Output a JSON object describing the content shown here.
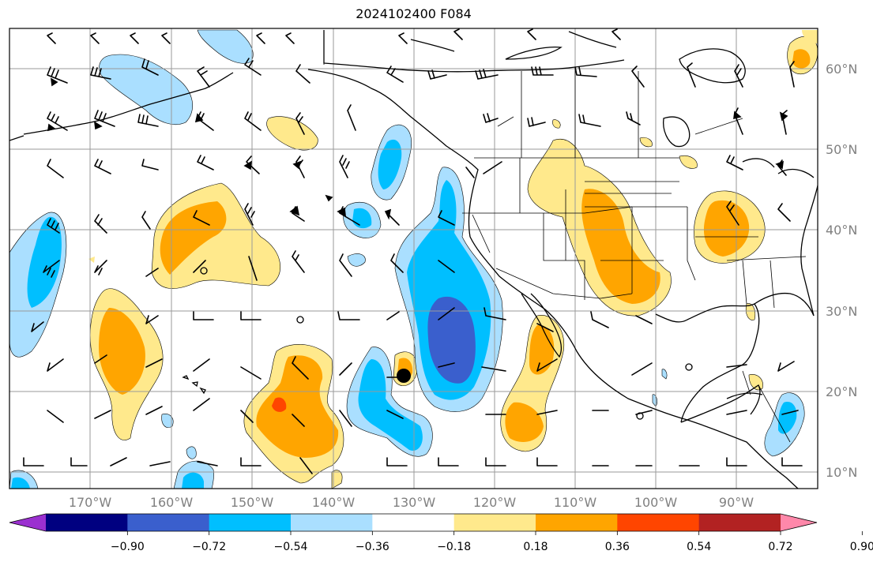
{
  "title": "2024102400 F084",
  "latitude_labels": [
    "60°N",
    "50°N",
    "40°N",
    "30°N",
    "20°N",
    "10°N"
  ],
  "longitude_labels": [
    "170°W",
    "160°W",
    "150°W",
    "140°W",
    "130°W",
    "120°W",
    "110°W",
    "100°W",
    "90°W"
  ],
  "colorbar": {
    "tick_labels": [
      "−0.90",
      "−0.72",
      "−0.54",
      "−0.36",
      "−0.18",
      "0.18",
      "0.36",
      "0.54",
      "0.72",
      "0.90"
    ],
    "colors": [
      "#9b30d0",
      "#000080",
      "#3a5fcd",
      "#00bfff",
      "#aadfff",
      "#ffffff",
      "#ffe98c",
      "#ffa500",
      "#ff4500",
      "#b22222",
      "#ff88aa"
    ]
  },
  "colors": {
    "grid": "#9a9a9a",
    "coast": "#000000",
    "positive_light": "#ffe98c",
    "positive_mid": "#ffa500",
    "positive_strong": "#ff4500",
    "negative_light": "#aadfff",
    "negative_mid": "#00bfff",
    "negative_strong": "#3a5fcd"
  }
}
